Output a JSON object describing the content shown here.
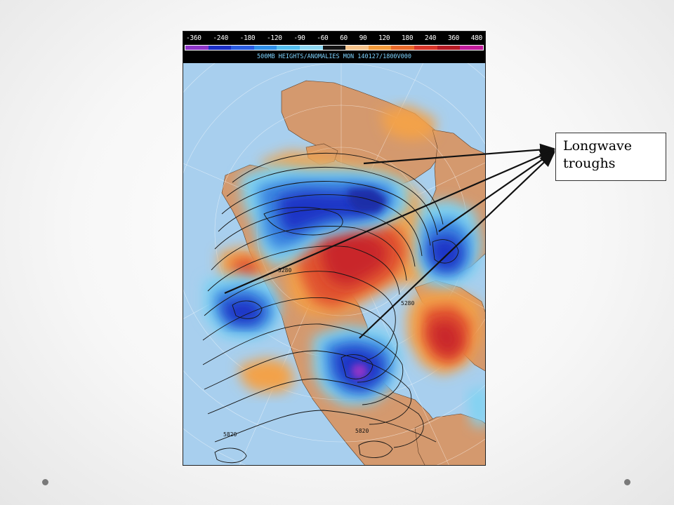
{
  "map": {
    "colorbar_ticks": [
      "-360",
      "-240",
      "-180",
      "-120",
      "-90",
      "-60",
      "60",
      "90",
      "120",
      "180",
      "240",
      "360",
      "480"
    ],
    "colorbar_colors": [
      "#8e35c8",
      "#1b2fc7",
      "#2a5ce0",
      "#2f8fe8",
      "#55bff0",
      "#8fd8f2",
      "#141414",
      "#f6c38a",
      "#f39b3b",
      "#ea6a2a",
      "#d9362a",
      "#b51a24",
      "#c21c9c"
    ],
    "title": "500MB HEIGHTS/ANOMALIES MON 140127/1800V000",
    "contour_labels": [
      {
        "text": "5280",
        "k": "a"
      },
      {
        "text": "5280",
        "k": "b"
      },
      {
        "text": "5820",
        "k": "c"
      },
      {
        "text": "5820",
        "k": "d"
      }
    ]
  },
  "annotation": {
    "line1": "Longwave",
    "line2": "troughs"
  }
}
